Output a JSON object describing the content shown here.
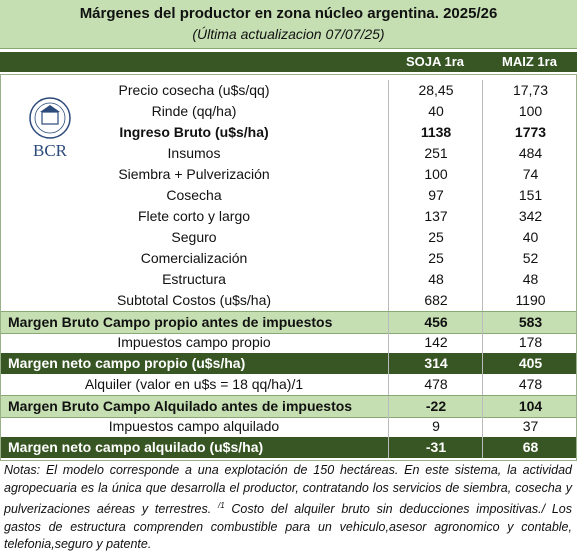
{
  "header": {
    "title": "Márgenes  del productor en zona núcleo argentina. 2025/26",
    "subtitle": "(Última actualizacion 07/07/25)"
  },
  "logo": "BCR",
  "table": {
    "columns": [
      "SOJA 1ra",
      "MAIZ 1ra"
    ],
    "rows": [
      {
        "label": "Precio cosecha (u$s/qq)",
        "values": [
          "28,45",
          "17,73"
        ],
        "style": "plain"
      },
      {
        "label": "Rinde (qq/ha)",
        "values": [
          "40",
          "100"
        ],
        "style": "plain"
      },
      {
        "label": "Ingreso Bruto (u$s/ha)",
        "values": [
          "1138",
          "1773"
        ],
        "style": "bold"
      },
      {
        "label": "Insumos",
        "values": [
          "251",
          "484"
        ],
        "style": "plain"
      },
      {
        "label": "Siembra + Pulverización",
        "values": [
          "100",
          "74"
        ],
        "style": "plain"
      },
      {
        "label": "Cosecha",
        "values": [
          "97",
          "151"
        ],
        "style": "plain"
      },
      {
        "label": "Flete corto y largo",
        "values": [
          "137",
          "342"
        ],
        "style": "plain"
      },
      {
        "label": "Seguro",
        "values": [
          "25",
          "40"
        ],
        "style": "plain"
      },
      {
        "label": "Comercialización",
        "values": [
          "25",
          "52"
        ],
        "style": "plain"
      },
      {
        "label": "Estructura",
        "values": [
          "48",
          "48"
        ],
        "style": "plain"
      },
      {
        "label": "Subtotal Costos (u$s/ha)",
        "values": [
          "682",
          "1190"
        ],
        "style": "plain"
      },
      {
        "label": "Margen Bruto Campo propio antes de impuestos",
        "values": [
          "456",
          "583"
        ],
        "style": "light"
      },
      {
        "label": "Impuestos  campo propio",
        "values": [
          "142",
          "178"
        ],
        "style": "plain"
      },
      {
        "label": "Margen neto campo propio (u$s/ha)",
        "values": [
          "314",
          "405"
        ],
        "style": "dark"
      },
      {
        "label": "Alquiler (valor en u$s = 18 qq/ha)/1",
        "values": [
          "478",
          "478"
        ],
        "style": "plain"
      },
      {
        "label": "Margen Bruto Campo Alquilado antes de impuestos",
        "values": [
          "-22",
          "104"
        ],
        "style": "light"
      },
      {
        "label": "Impuestos campo alquilado",
        "values": [
          "9",
          "37"
        ],
        "style": "plain"
      },
      {
        "label": "Margen neto campo alquilado (u$s/ha)",
        "values": [
          "-31",
          "68"
        ],
        "style": "dark"
      }
    ]
  },
  "notes": [
    "Notas: El modelo corresponde a una explotación de 150 hectáreas. En este sistema, la actividad agropecuaria es la única que desarrolla el productor, contratando los servicios de siembra, cosecha y pulverizaciones aéreas y terrestres. ",
    "/1",
    " Costo del alquiler bruto sin deducciones impositivas./ Los gastos de estructura comprenden combustible para un vehiculo,asesor agronomico y contable, telefonia,seguro y patente."
  ]
}
